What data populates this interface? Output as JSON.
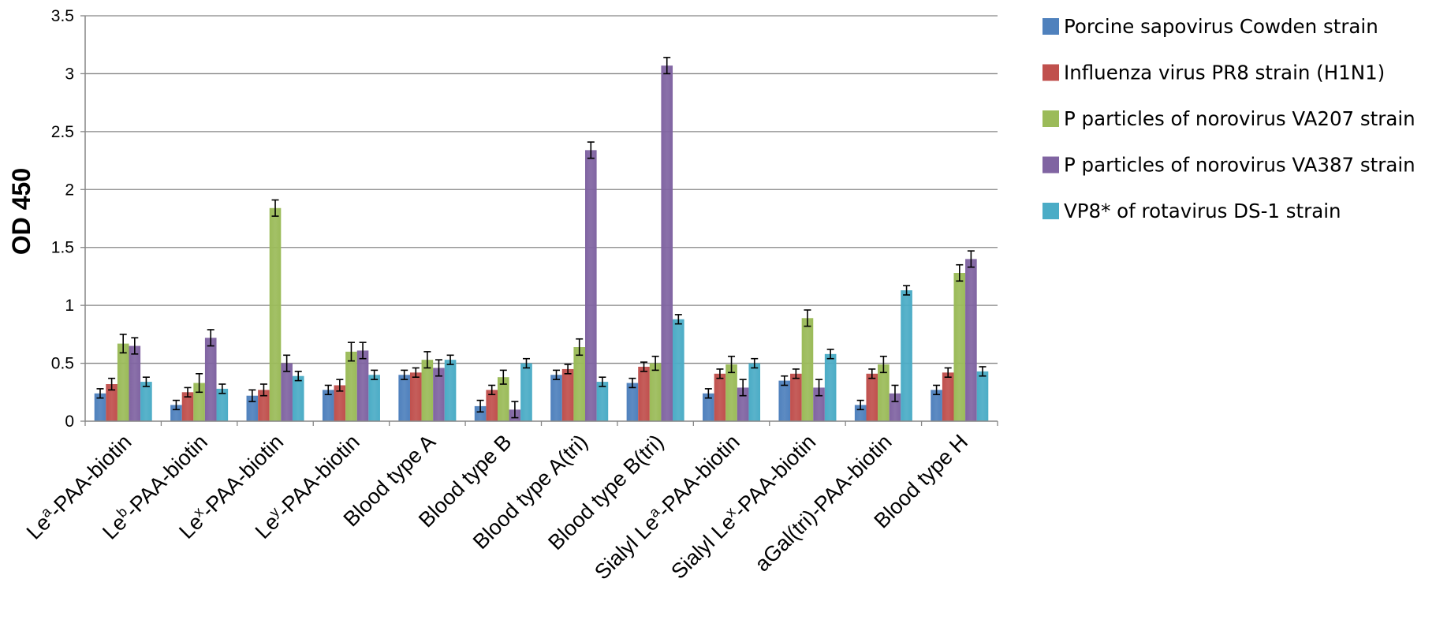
{
  "chart_data": {
    "type": "bar",
    "ylabel": "OD 450",
    "xlabel": "",
    "ylim": [
      0,
      3.5
    ],
    "ytick_step": 0.5,
    "grid": true,
    "legend_position": "right",
    "categories": [
      {
        "base": "Le",
        "sup": "a",
        "rest": "-PAA-biotin"
      },
      {
        "base": "Le",
        "sup": "b",
        "rest": "-PAA-biotin"
      },
      {
        "base": "Le",
        "sup": "x",
        "rest": "-PAA-biotin"
      },
      {
        "base": "Le",
        "sup": "y",
        "rest": "-PAA-biotin"
      },
      {
        "base": "Blood type A",
        "sup": "",
        "rest": ""
      },
      {
        "base": "Blood type B",
        "sup": "",
        "rest": ""
      },
      {
        "base": "Blood type A(tri)",
        "sup": "",
        "rest": ""
      },
      {
        "base": "Blood type B(tri)",
        "sup": "",
        "rest": ""
      },
      {
        "base": "Sialyl Le",
        "sup": "a",
        "rest": "-PAA-biotin"
      },
      {
        "base": "Sialyl Le",
        "sup": "x",
        "rest": "-PAA-biotin"
      },
      {
        "base": "aGal(tri)-PAA-biotin",
        "sup": "",
        "rest": ""
      },
      {
        "base": "Blood type H",
        "sup": "",
        "rest": ""
      }
    ],
    "series": [
      {
        "name": "Porcine sapovirus Cowden strain",
        "color": "#4F81BD",
        "values": [
          0.24,
          0.14,
          0.22,
          0.27,
          0.4,
          0.13,
          0.4,
          0.33,
          0.24,
          0.35,
          0.14,
          0.27
        ],
        "errors": [
          0.04,
          0.04,
          0.05,
          0.04,
          0.04,
          0.05,
          0.04,
          0.04,
          0.04,
          0.04,
          0.04,
          0.04
        ]
      },
      {
        "name": "Influenza virus PR8 strain (H1N1)",
        "color": "#C0504D",
        "values": [
          0.32,
          0.25,
          0.27,
          0.31,
          0.42,
          0.27,
          0.45,
          0.47,
          0.41,
          0.41,
          0.41,
          0.42
        ],
        "errors": [
          0.05,
          0.04,
          0.05,
          0.05,
          0.04,
          0.04,
          0.04,
          0.04,
          0.04,
          0.04,
          0.04,
          0.04
        ]
      },
      {
        "name": "P particles of norovirus VA207 strain",
        "color": "#9BBB59",
        "values": [
          0.67,
          0.33,
          1.84,
          0.6,
          0.53,
          0.38,
          0.64,
          0.5,
          0.49,
          0.89,
          0.49,
          1.28
        ],
        "errors": [
          0.08,
          0.08,
          0.07,
          0.08,
          0.07,
          0.06,
          0.07,
          0.06,
          0.07,
          0.07,
          0.07,
          0.07
        ]
      },
      {
        "name": "P particles of norovirus VA387 strain",
        "color": "#8064A2",
        "values": [
          0.65,
          0.72,
          0.5,
          0.61,
          0.46,
          0.1,
          2.34,
          3.07,
          0.29,
          0.29,
          0.24,
          1.4
        ],
        "errors": [
          0.07,
          0.07,
          0.07,
          0.07,
          0.07,
          0.07,
          0.07,
          0.07,
          0.07,
          0.07,
          0.07,
          0.07
        ]
      },
      {
        "name": "VP8* of rotavirus DS-1 strain",
        "color": "#4BACC6",
        "values": [
          0.34,
          0.28,
          0.39,
          0.4,
          0.53,
          0.5,
          0.34,
          0.88,
          0.5,
          0.58,
          1.13,
          0.43
        ],
        "errors": [
          0.04,
          0.04,
          0.04,
          0.04,
          0.04,
          0.04,
          0.04,
          0.04,
          0.04,
          0.04,
          0.04,
          0.04
        ]
      }
    ]
  }
}
